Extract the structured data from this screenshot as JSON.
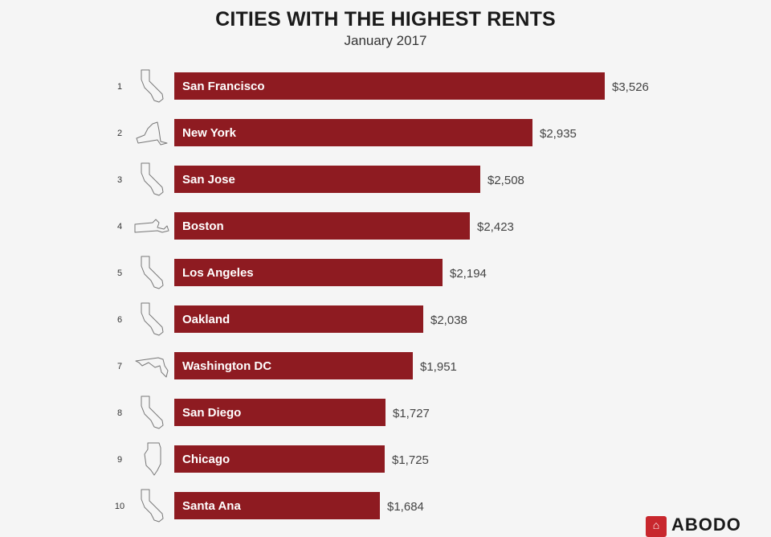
{
  "header": {
    "title": "CITIES WITH THE HIGHEST RENTS",
    "subtitle": "January 2017"
  },
  "footer": {
    "logo_text": "ABODO"
  },
  "colors": {
    "bar": "#8e1b21",
    "background": "#f5f5f5",
    "logo": "#c8272d"
  },
  "chart_data": {
    "type": "bar",
    "orientation": "horizontal",
    "title": "CITIES WITH THE HIGHEST RENTS",
    "subtitle": "January 2017",
    "xlabel": "",
    "ylabel": "",
    "grid": false,
    "legend": "none",
    "xlim": [
      0,
      3526
    ],
    "ranks": [
      "1",
      "2",
      "3",
      "4",
      "5",
      "6",
      "7",
      "8",
      "9",
      "10"
    ],
    "categories": [
      "San Francisco",
      "New York",
      "San Jose",
      "Boston",
      "Los Angeles",
      "Oakland",
      "Washington DC",
      "San Diego",
      "Chicago",
      "Santa Ana"
    ],
    "values": [
      3526,
      2935,
      2508,
      2423,
      2194,
      2038,
      1951,
      1727,
      1725,
      1684
    ],
    "value_labels": [
      "$3,526",
      "$2,935",
      "$2,508",
      "$2,423",
      "$2,194",
      "$2,038",
      "$1,951",
      "$1,727",
      "$1,725",
      "$1,684"
    ],
    "state_icons": [
      "california-outline-icon",
      "new-york-outline-icon",
      "california-outline-icon",
      "massachusetts-outline-icon",
      "california-outline-icon",
      "california-outline-icon",
      "maryland-outline-icon",
      "california-outline-icon",
      "illinois-outline-icon",
      "california-outline-icon"
    ]
  }
}
